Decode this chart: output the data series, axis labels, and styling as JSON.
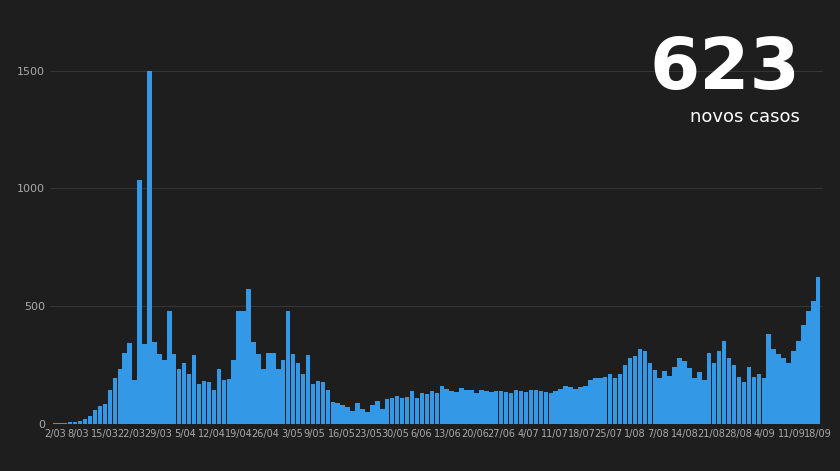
{
  "background_color": "#1e1e1e",
  "bar_color": "#3399e6",
  "text_color": "#aaaaaa",
  "title_number": "623",
  "title_label": "novos casos",
  "yticks": [
    0,
    500,
    1000,
    1500
  ],
  "xtick_labels": [
    "2/03",
    "8/03",
    "15/03",
    "22/03",
    "29/03",
    "5/04",
    "12/04",
    "19/04",
    "26/04",
    "3/05",
    "9/05",
    "16/05",
    "23/05",
    "30/05",
    "6/06",
    "13/06",
    "20/06",
    "27/06",
    "4/07",
    "11/07",
    "18/07",
    "25/07",
    "1/08",
    "7/08",
    "14/08",
    "21/08",
    "28/08",
    "4/09",
    "11/09",
    "18/09"
  ],
  "values": [
    2,
    2,
    4,
    6,
    9,
    13,
    20,
    34,
    57,
    76,
    86,
    143,
    194,
    235,
    302,
    342,
    187,
    1035,
    338,
    1500,
    349,
    295,
    271,
    480,
    297,
    233,
    257,
    212,
    291,
    168,
    182,
    180,
    142,
    234,
    187,
    192,
    271,
    480,
    480,
    572,
    349,
    295,
    233,
    302,
    302,
    234,
    271,
    480,
    297,
    257,
    212,
    291,
    168,
    182,
    180,
    142,
    95,
    88,
    82,
    71,
    56,
    88,
    64,
    50,
    82,
    96,
    65,
    104,
    112,
    119,
    110,
    115,
    138,
    111,
    132,
    127,
    140,
    130,
    162,
    148,
    140,
    135,
    154,
    145,
    142,
    130,
    142,
    138,
    135,
    140,
    138,
    135,
    130,
    142,
    138,
    135,
    142,
    145,
    138,
    135,
    130,
    140,
    148,
    162,
    155,
    148,
    155,
    162,
    185,
    195,
    195,
    200,
    210,
    195,
    212,
    248,
    280,
    290,
    320,
    310,
    260,
    228,
    195,
    225,
    205,
    240,
    280,
    265,
    238,
    195,
    220,
    185,
    300,
    260,
    310,
    350,
    280,
    250,
    200,
    180,
    240,
    200,
    210,
    195,
    380,
    320,
    295,
    280,
    260,
    310,
    350,
    420,
    480,
    520,
    623
  ]
}
